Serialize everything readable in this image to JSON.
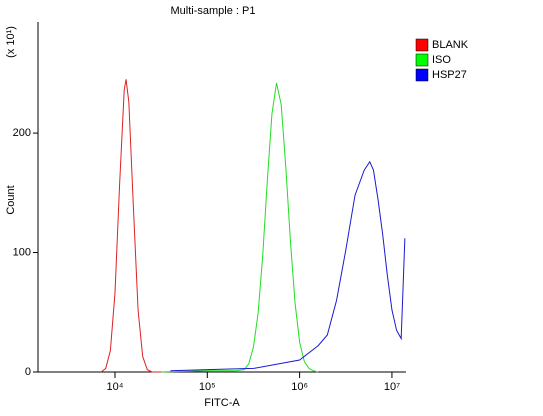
{
  "chart_data": {
    "type": "line",
    "title": "Multi-sample : P1",
    "xlabel": "FITC-A",
    "ylabel": "Count",
    "yunit": "(x 10¹)",
    "xscale": "log",
    "xlim": [
      1466,
      14200000
    ],
    "xticks": [
      {
        "value": 10000,
        "label": "10⁴"
      },
      {
        "value": 100000,
        "label": "10⁵"
      },
      {
        "value": 1000000,
        "label": "10⁶"
      },
      {
        "value": 10000000,
        "label": "10⁷"
      }
    ],
    "ylim": [
      0,
      293
    ],
    "yticks": [
      0,
      100,
      200
    ],
    "legend": "right",
    "series": [
      {
        "name": "BLANK",
        "color": "#dd2222",
        "legend_color": "#ff0000",
        "x": [
          7079,
          7943,
          8913,
          10000,
          11220,
          12589,
          13183,
          14125,
          15849,
          17783,
          19953,
          22387,
          25119,
          28184,
          31623
        ],
        "values": [
          0,
          3,
          18,
          66,
          157,
          236,
          245,
          226,
          137,
          52,
          13,
          2,
          0,
          0,
          0
        ]
      },
      {
        "name": "ISO",
        "color": "#22dd22",
        "legend_color": "#00ff00",
        "x": [
          31623,
          100000,
          199526,
          251189,
          281838,
          316228,
          354813,
          398107,
          446684,
          501187,
          562341,
          630957,
          707946,
          794328,
          891251,
          1000000,
          1122018,
          1258925,
          1412538,
          1584893
        ],
        "values": [
          0,
          1,
          1,
          2,
          7,
          21,
          49,
          97,
          160,
          216,
          242,
          224,
          172,
          110,
          58,
          25,
          9,
          3,
          1,
          0
        ]
      },
      {
        "name": "HSP27",
        "color": "#1a1ad0",
        "legend_color": "#0000ff",
        "x": [
          39811,
          100000,
          316228,
          1000000,
          1584893,
          1995262,
          2511886,
          3162278,
          3981072,
          5011872,
          5754399,
          6309573,
          7079458,
          7943282,
          8912509,
          10000000,
          11220185,
          12589254,
          13803843
        ],
        "values": [
          1,
          2,
          3,
          10,
          22,
          31,
          60,
          102,
          148,
          169,
          176,
          169,
          144,
          115,
          81,
          52,
          35,
          28,
          112
        ]
      }
    ]
  }
}
